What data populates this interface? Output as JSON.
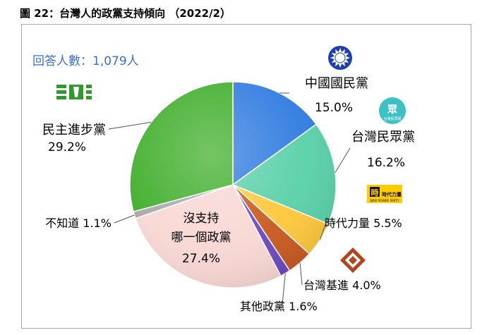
{
  "figure": {
    "title": "圖 22：台灣人的政黨支持傾向 （2022/2）",
    "sample_note": "回答人數：1,079人"
  },
  "chart_data": {
    "type": "pie",
    "title": "台灣人的政黨支持傾向",
    "sample_size": "1,079",
    "slices": [
      {
        "name": "中國國民黨",
        "value": 15.0,
        "label": "15.0%",
        "color": "#2f7be0",
        "logo": "kmt-sun-logo-icon"
      },
      {
        "name": "台灣民眾黨",
        "value": 16.2,
        "label": "16.2%",
        "color": "#58d0a8",
        "logo": "tpp-logo-icon"
      },
      {
        "name": "時代力量",
        "value": 5.5,
        "label": "5.5%",
        "color": "#ffc83a",
        "logo": "npp-logo-icon"
      },
      {
        "name": "台灣基進",
        "value": 4.0,
        "label": "4.0%",
        "color": "#c8581e",
        "logo": "tsp-logo-icon"
      },
      {
        "name": "其他政黨",
        "value": 1.6,
        "label": "1.6%",
        "color": "#6a46c0"
      },
      {
        "name": "沒支持哪一個政黨",
        "value": 27.4,
        "label": "27.4%",
        "color": "#f9d7d4"
      },
      {
        "name": "不知道",
        "value": 1.1,
        "label": "1.1%",
        "color": "#a8a8a8"
      },
      {
        "name": "民主進步黨",
        "value": 29.2,
        "label": "29.2%",
        "color": "#3fae2a",
        "logo": "dpp-logo-icon"
      }
    ],
    "logo_texts": {
      "tpp": "台灣民眾黨",
      "npp": "時代力量",
      "npp_en": "NEW POWER PARTY"
    }
  }
}
